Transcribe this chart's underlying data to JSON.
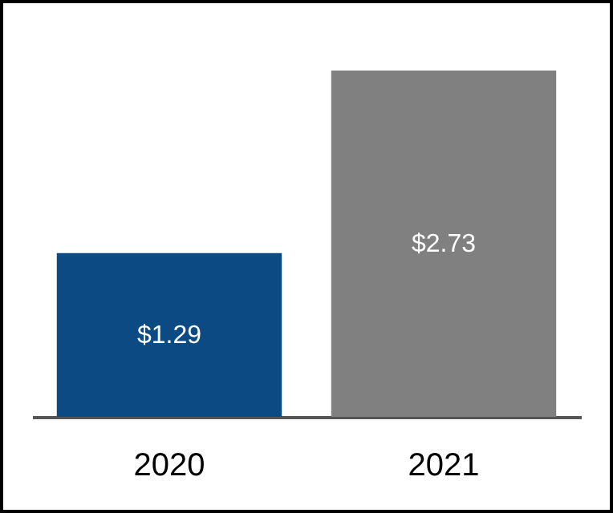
{
  "chart_data": {
    "type": "bar",
    "categories": [
      "2020",
      "2021"
    ],
    "values": [
      1.29,
      2.73
    ],
    "colors": [
      "#0b4a82",
      "#808080"
    ],
    "value_labels": [
      "$1.29",
      "$2.73"
    ],
    "grid": false
  }
}
